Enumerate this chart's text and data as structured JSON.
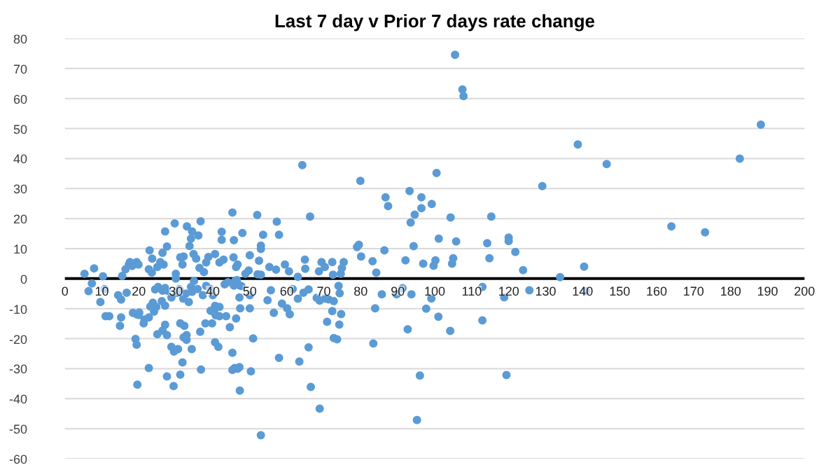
{
  "chart_data": {
    "type": "scatter",
    "title": "Last 7 day v Prior 7 days rate change",
    "xlim": [
      0,
      200
    ],
    "ylim": [
      -60,
      80
    ],
    "xticks": [
      0,
      10,
      20,
      30,
      40,
      50,
      60,
      70,
      80,
      90,
      100,
      110,
      120,
      130,
      140,
      150,
      160,
      170,
      180,
      190,
      200
    ],
    "yticks": [
      -60,
      -50,
      -40,
      -30,
      -20,
      -10,
      0,
      10,
      20,
      30,
      40,
      50,
      60,
      70,
      80
    ],
    "grid": "y",
    "marker": "circle",
    "series": [
      {
        "color": "#5b9bd5",
        "x": [
          188.2,
          182.5,
          138.7,
          146.5,
          129.1,
          164,
          173.1,
          115.3,
          114.2,
          114.8,
          120,
          120,
          121.8,
          123.9,
          133.9,
          140.4,
          140.9,
          125.6,
          118.8,
          112.9,
          112.9,
          119.4,
          105.5,
          107.5,
          107.8,
          64.2,
          100.5,
          79.9,
          93.2,
          86.7,
          96.4,
          87.4,
          99.2,
          96.4,
          94.6,
          93.5,
          45.3,
          52,
          66.3,
          57.3,
          104.3,
          45.7,
          48,
          53.6,
          57.9,
          53,
          53,
          50,
          79,
          79.5,
          86.4,
          94.3,
          101.1,
          105.8,
          45.6,
          46.7,
          46.3,
          52.5,
          55.3,
          57.1,
          59.5,
          60.6,
          64.9,
          65,
          69.4,
          70.3,
          68.7,
          72.3,
          75.4,
          74.9,
          74.6,
          72.5,
          80.1,
          83.2,
          84.2,
          92.1,
          96.9,
          99.7,
          100.2,
          104.7,
          105,
          48.8,
          49.7,
          52.1,
          53,
          63,
          46.5,
          47.7,
          45.7,
          50,
          55.7,
          54.8,
          58.7,
          60.1,
          61.6,
          63,
          64.5,
          65.9,
          68.1,
          68.9,
          70.4,
          71.3,
          72.7,
          74,
          74.3,
          56.5,
          60.8,
          72.3,
          74.7,
          70.9,
          74.2,
          85.7,
          89.7,
          91.3,
          83.9,
          93.7,
          97.7,
          99.1,
          101,
          104.2,
          92.7,
          83.4,
          72.7,
          73.6,
          65.9,
          50.9,
          57.9,
          63.4,
          66.5,
          68.9,
          96,
          95.2,
          53,
          50.3,
          47.3,
          45.3,
          46.7,
          45.3,
          50,
          47.4,
          5.3,
          7.9,
          10.3,
          15.5,
          16.4,
          17.3,
          18.2,
          17.6,
          19.4,
          19.9,
          22.9,
          22.7,
          23.5,
          23.6,
          25,
          26.7,
          25.8,
          27.1,
          26.4,
          27.6,
          29.7,
          31.2,
          32.1,
          31.8,
          30,
          30,
          33,
          34.4,
          34.1,
          33.7,
          34.8,
          35.5,
          36.4,
          36.7,
          36.1,
          38.2,
          38.8,
          37.6,
          40.6,
          41.8,
          42.9,
          42.4,
          42.4,
          6.4,
          7.3,
          9.6,
          10.7,
          11,
          12,
          14.4,
          15.2,
          16.7,
          15.2,
          14.9,
          18.4,
          19.9,
          21.5,
          22.7,
          23.1,
          23.8,
          24.4,
          25.2,
          26.4,
          27.1,
          27.6,
          26.2,
          27.1,
          28.8,
          30.3,
          30.9,
          32,
          32.7,
          33.5,
          34.1,
          34.9,
          34.4,
          35.9,
          37.3,
          38.2,
          39.4,
          40,
          40.6,
          41.8,
          43.2,
          44.1,
          46,
          47.1,
          19.1,
          19.4,
          19.4,
          20.1,
          19.6,
          22.7,
          21.3,
          25,
          24.7,
          24.1,
          26.4,
          27.1,
          27.6,
          27.6,
          29.4,
          31.2,
          31.8,
          28.8,
          29.5,
          30.6,
          32.1,
          32.9,
          32.9,
          31.2,
          32.3,
          34.3,
          36.6,
          36.8,
          38,
          39.4,
          40.4,
          40.8,
          41.8,
          40.6,
          41.5,
          39.8,
          43.6,
          44.6,
          45.9,
          47.2,
          46.3,
          47.2
        ],
        "values": [
          51.3,
          40,
          44.7,
          38.2,
          30.8,
          17.4,
          15.4,
          20.7,
          11.8,
          6.8,
          13.7,
          12.5,
          8.9,
          2.8,
          0.5,
          4,
          -4.2,
          -3.9,
          -6.2,
          -2.8,
          -13.9,
          -32.1,
          74.6,
          63,
          60.8,
          37.8,
          35.2,
          32.6,
          29.2,
          27.1,
          27.1,
          24.2,
          24.9,
          23.5,
          21.3,
          18.7,
          22,
          21.2,
          20.7,
          19,
          20.4,
          12.8,
          15.2,
          14.6,
          14.6,
          11,
          9.9,
          7.8,
          10.5,
          11.3,
          9.4,
          10.8,
          13.3,
          12.4,
          7.1,
          4.7,
          3.9,
          6,
          3.9,
          3,
          4.7,
          2.4,
          6.3,
          3.3,
          5.5,
          3.9,
          2.4,
          5.5,
          5.5,
          3.5,
          1.6,
          1.3,
          7.4,
          5.8,
          2,
          6.1,
          5,
          4.3,
          6.1,
          5,
          6.8,
          1.6,
          2.7,
          1.4,
          1.3,
          0.6,
          -0.5,
          -2.5,
          -2.3,
          -5.5,
          -3.9,
          -7.2,
          -8.3,
          -9.9,
          -3.5,
          -6.7,
          -4.7,
          -3.6,
          -6.4,
          -7.3,
          -6.6,
          -6.9,
          -7.5,
          -2.4,
          -4.9,
          -11.4,
          -11.9,
          -10.8,
          -11.8,
          -14.4,
          -15.3,
          -5.2,
          -5.2,
          -3.2,
          -9.9,
          -5.2,
          -10,
          -6.6,
          -12.7,
          -17.4,
          -16.9,
          -21.6,
          -19.8,
          -20.2,
          -22.9,
          -19.9,
          -26.4,
          -27.6,
          -36.1,
          -43.3,
          -32.3,
          -47.1,
          -52.2,
          -30.9,
          -37.3,
          -30.4,
          -30,
          -24.7,
          -9.9,
          -9.9,
          1.6,
          3.4,
          0.8,
          0.9,
          3.1,
          4.7,
          4.2,
          5.5,
          5.5,
          4.7,
          9.4,
          3.1,
          2,
          6.7,
          3.9,
          4.7,
          5.5,
          15.7,
          8.6,
          10.7,
          18.4,
          7.1,
          7.4,
          4.7,
          0,
          1.6,
          17.4,
          15.7,
          13.3,
          10.9,
          8.2,
          6.7,
          3.6,
          19.1,
          14.4,
          5.4,
          7.2,
          2.2,
          8.2,
          5.4,
          6.3,
          15.6,
          12.9,
          -4.2,
          -1.6,
          -7.8,
          -3.5,
          -12.5,
          -12.5,
          -5.5,
          -7,
          -4.7,
          -12.9,
          -15.7,
          -11.4,
          -12.1,
          -13.6,
          -12.9,
          -9.3,
          -8,
          -3.6,
          -2.8,
          -4,
          -3.1,
          -4,
          -7.5,
          -9,
          -6.3,
          -4.7,
          -3.5,
          -6.7,
          -5,
          -7.8,
          -2.8,
          -0.8,
          -4.4,
          -3.5,
          -5.5,
          -2.4,
          -3.5,
          -5.5,
          -9.1,
          -9.4,
          -1.9,
          -1.2,
          -0.8,
          -2.2,
          -20.1,
          -22,
          -11.9,
          -11.3,
          -35.3,
          -29.8,
          -14.9,
          -18.5,
          -9.4,
          -11,
          -17.3,
          -15.4,
          -18.8,
          -32.6,
          -35.8,
          -32,
          -27.9,
          -22.7,
          -24.3,
          -23.5,
          -19.6,
          -20.4,
          -18.8,
          -14.9,
          -15.7,
          -23.5,
          -17.7,
          -30.3,
          -14.9,
          -10.7,
          -11.3,
          -12.2,
          -12.5,
          -21.2,
          -22.7,
          -14.9,
          -12.5,
          -16.2,
          -29.8,
          -29.5,
          -13.3,
          -6.3
        ]
      }
    ]
  }
}
